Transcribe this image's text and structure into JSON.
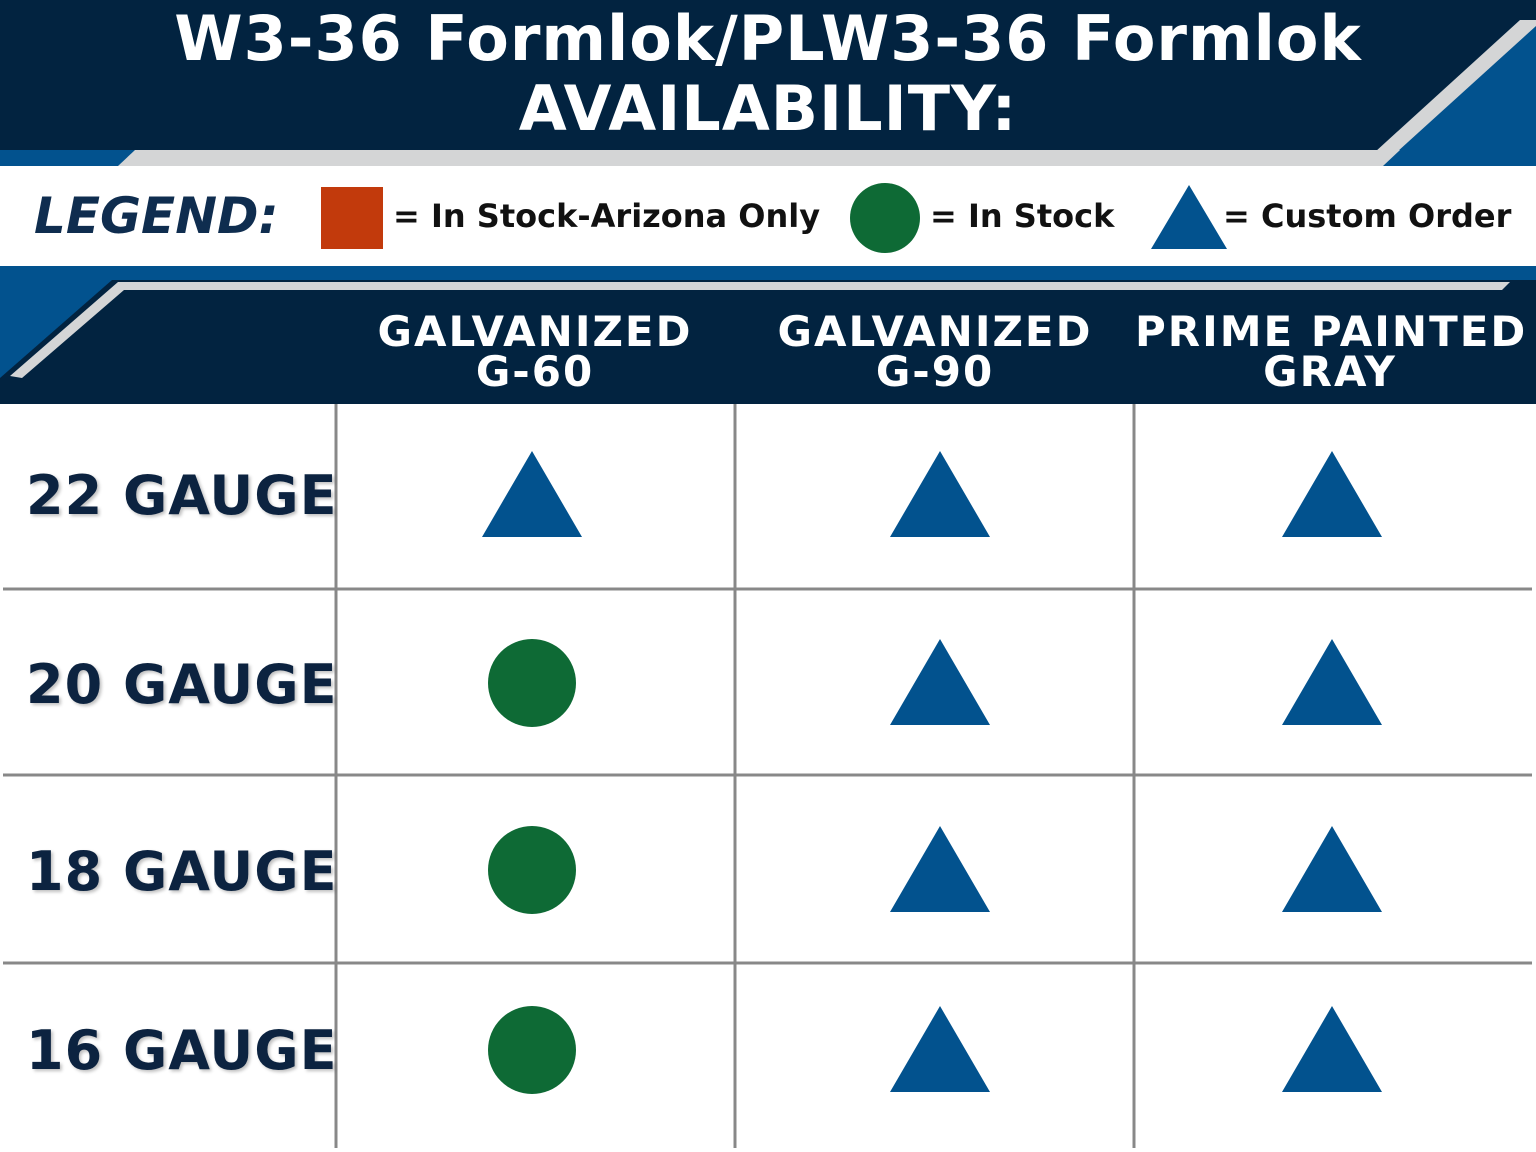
{
  "title": {
    "line1": "W3-36 Formlok/PLW3-36 Formlok",
    "line2": "AVAILABILITY:"
  },
  "legend": {
    "label": "LEGEND:",
    "items": [
      {
        "symbol": "square",
        "color": "#c23a0c",
        "text": "= In Stock-Arizona Only"
      },
      {
        "symbol": "circle",
        "color": "#0e6a35",
        "text": "= In Stock"
      },
      {
        "symbol": "triangle",
        "color": "#02528e",
        "text": "= Custom Order"
      }
    ]
  },
  "columns": [
    {
      "line1": "GALVANIZED",
      "line2": "G-60"
    },
    {
      "line1": "GALVANIZED",
      "line2": "G-90"
    },
    {
      "line1": "PRIME PAINTED",
      "line2": "GRAY"
    }
  ],
  "rows": [
    {
      "label": "22 GAUGE",
      "cells": [
        "triangle",
        "triangle",
        "triangle"
      ]
    },
    {
      "label": "20 GAUGE",
      "cells": [
        "circle",
        "triangle",
        "triangle"
      ]
    },
    {
      "label": "18 GAUGE",
      "cells": [
        "circle",
        "triangle",
        "triangle"
      ]
    },
    {
      "label": "16 GAUGE",
      "cells": [
        "circle",
        "triangle",
        "triangle"
      ]
    }
  ],
  "colors": {
    "navy": "#022340",
    "blue": "#02528e",
    "silver": "#d4d5d6",
    "orange": "#c23a0c",
    "green": "#0e6a35",
    "grid": "#888888"
  }
}
